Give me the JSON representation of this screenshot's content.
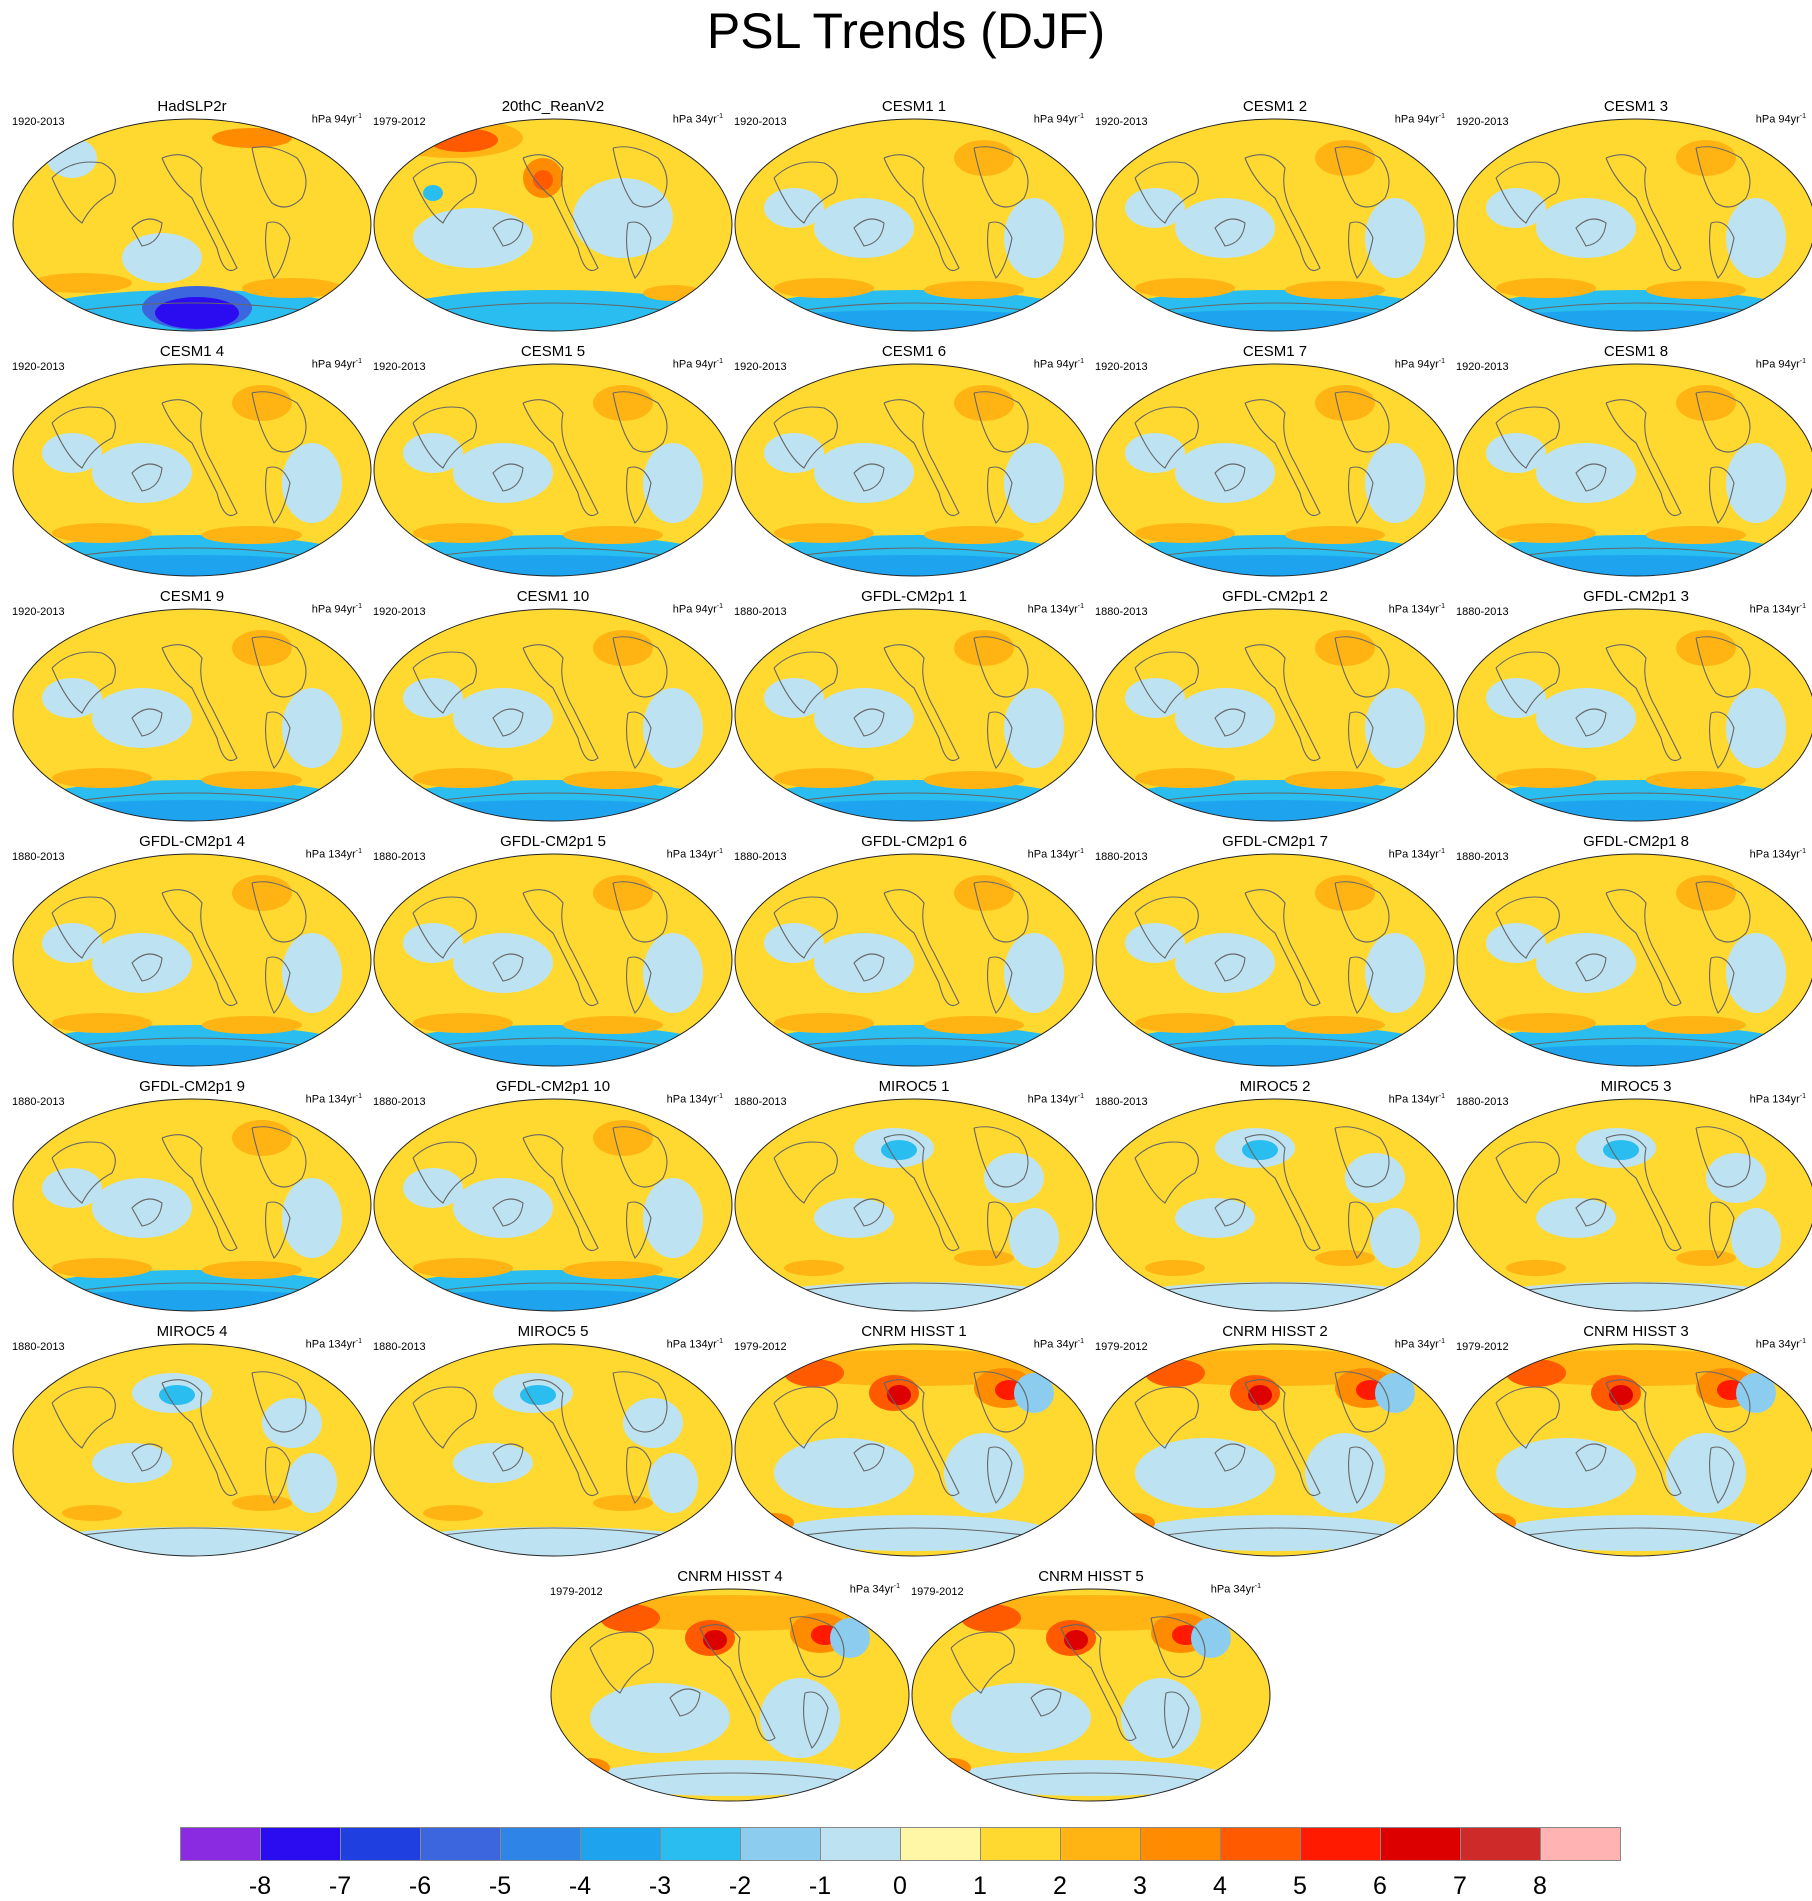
{
  "title": "PSL Trends (DJF)",
  "panels": [
    {
      "name": "HadSLP2r",
      "period": "1920-2013",
      "units": "hPa 94yr",
      "exponent": "-1",
      "pattern": "obs_hadslp"
    },
    {
      "name": "20thC_ReanV2",
      "period": "1979-2012",
      "units": "hPa 34yr",
      "exponent": "-1",
      "pattern": "reanv2"
    },
    {
      "name": "CESM1 1",
      "period": "1920-2013",
      "units": "hPa 94yr",
      "exponent": "-1",
      "pattern": "model"
    },
    {
      "name": "CESM1 2",
      "period": "1920-2013",
      "units": "hPa 94yr",
      "exponent": "-1",
      "pattern": "model"
    },
    {
      "name": "CESM1 3",
      "period": "1920-2013",
      "units": "hPa 94yr",
      "exponent": "-1",
      "pattern": "model"
    },
    {
      "name": "CESM1 4",
      "period": "1920-2013",
      "units": "hPa 94yr",
      "exponent": "-1",
      "pattern": "model"
    },
    {
      "name": "CESM1 5",
      "period": "1920-2013",
      "units": "hPa 94yr",
      "exponent": "-1",
      "pattern": "model"
    },
    {
      "name": "CESM1 6",
      "period": "1920-2013",
      "units": "hPa 94yr",
      "exponent": "-1",
      "pattern": "model"
    },
    {
      "name": "CESM1 7",
      "period": "1920-2013",
      "units": "hPa 94yr",
      "exponent": "-1",
      "pattern": "model"
    },
    {
      "name": "CESM1 8",
      "period": "1920-2013",
      "units": "hPa 94yr",
      "exponent": "-1",
      "pattern": "model"
    },
    {
      "name": "CESM1 9",
      "period": "1920-2013",
      "units": "hPa 94yr",
      "exponent": "-1",
      "pattern": "model"
    },
    {
      "name": "CESM1 10",
      "period": "1920-2013",
      "units": "hPa 94yr",
      "exponent": "-1",
      "pattern": "model"
    },
    {
      "name": "GFDL-CM2p1 1",
      "period": "1880-2013",
      "units": "hPa 134yr",
      "exponent": "-1",
      "pattern": "model"
    },
    {
      "name": "GFDL-CM2p1 2",
      "period": "1880-2013",
      "units": "hPa 134yr",
      "exponent": "-1",
      "pattern": "model"
    },
    {
      "name": "GFDL-CM2p1 3",
      "period": "1880-2013",
      "units": "hPa 134yr",
      "exponent": "-1",
      "pattern": "model"
    },
    {
      "name": "GFDL-CM2p1 4",
      "period": "1880-2013",
      "units": "hPa 134yr",
      "exponent": "-1",
      "pattern": "model"
    },
    {
      "name": "GFDL-CM2p1 5",
      "period": "1880-2013",
      "units": "hPa 134yr",
      "exponent": "-1",
      "pattern": "model"
    },
    {
      "name": "GFDL-CM2p1 6",
      "period": "1880-2013",
      "units": "hPa 134yr",
      "exponent": "-1",
      "pattern": "model"
    },
    {
      "name": "GFDL-CM2p1 7",
      "period": "1880-2013",
      "units": "hPa 134yr",
      "exponent": "-1",
      "pattern": "model"
    },
    {
      "name": "GFDL-CM2p1 8",
      "period": "1880-2013",
      "units": "hPa 134yr",
      "exponent": "-1",
      "pattern": "model"
    },
    {
      "name": "GFDL-CM2p1 9",
      "period": "1880-2013",
      "units": "hPa 134yr",
      "exponent": "-1",
      "pattern": "model"
    },
    {
      "name": "GFDL-CM2p1 10",
      "period": "1880-2013",
      "units": "hPa 134yr",
      "exponent": "-1",
      "pattern": "model"
    },
    {
      "name": "MIROC5 1",
      "period": "1880-2013",
      "units": "hPa 134yr",
      "exponent": "-1",
      "pattern": "miroc"
    },
    {
      "name": "MIROC5 2",
      "period": "1880-2013",
      "units": "hPa 134yr",
      "exponent": "-1",
      "pattern": "miroc"
    },
    {
      "name": "MIROC5 3",
      "period": "1880-2013",
      "units": "hPa 134yr",
      "exponent": "-1",
      "pattern": "miroc"
    },
    {
      "name": "MIROC5 4",
      "period": "1880-2013",
      "units": "hPa 134yr",
      "exponent": "-1",
      "pattern": "miroc"
    },
    {
      "name": "MIROC5 5",
      "period": "1880-2013",
      "units": "hPa 134yr",
      "exponent": "-1",
      "pattern": "miroc"
    },
    {
      "name": "CNRM HISST 1",
      "period": "1979-2012",
      "units": "hPa 34yr",
      "exponent": "-1",
      "pattern": "cnrm"
    },
    {
      "name": "CNRM HISST 2",
      "period": "1979-2012",
      "units": "hPa 34yr",
      "exponent": "-1",
      "pattern": "cnrm"
    },
    {
      "name": "CNRM HISST 3",
      "period": "1979-2012",
      "units": "hPa 34yr",
      "exponent": "-1",
      "pattern": "cnrm"
    },
    {
      "name": "CNRM HISST 4",
      "period": "1979-2012",
      "units": "hPa 34yr",
      "exponent": "-1",
      "pattern": "cnrm"
    },
    {
      "name": "CNRM HISST 5",
      "period": "1979-2012",
      "units": "hPa 34yr",
      "exponent": "-1",
      "pattern": "cnrm"
    }
  ],
  "colorbar": {
    "colors": [
      "#8a2be2",
      "#2b0cf0",
      "#1f3fe0",
      "#3b66dd",
      "#2f84e8",
      "#1ea4ef",
      "#29bdf0",
      "#8ccdef",
      "#bde3f2",
      "#fff6a6",
      "#ffd92f",
      "#ffb414",
      "#ff8c00",
      "#ff5a00",
      "#ff1a00",
      "#dd0000",
      "#cf2a2a",
      "#ffb3b3"
    ],
    "ticks": [
      "-8",
      "-7",
      "-6",
      "-5",
      "-4",
      "-3",
      "-2",
      "-1",
      "0",
      "1",
      "2",
      "3",
      "4",
      "5",
      "6",
      "7",
      "8"
    ]
  }
}
